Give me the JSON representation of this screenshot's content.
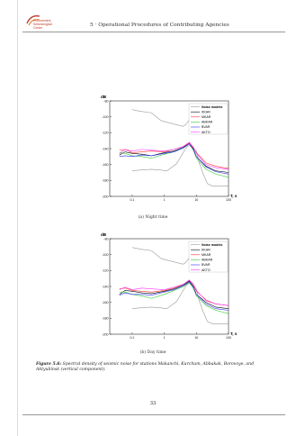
{
  "logo": {
    "line1": "Procurement",
    "line2": "Seismological",
    "line3": "Center"
  },
  "header": {
    "title": "5 · Operational Procedures of Contributing Agencies"
  },
  "chart_data": [
    {
      "type": "line",
      "subtitle": "(a) Night time",
      "ylabel": "dB",
      "xlabel": "T, s",
      "xscale": "log",
      "xlim": [
        0.02,
        100
      ],
      "ylim": [
        -200,
        -80
      ],
      "yticks": [
        -80,
        -100,
        -120,
        -140,
        -160,
        -180,
        -200
      ],
      "xticks": [
        0.1,
        1,
        10,
        100
      ],
      "legend_title": "Noise models",
      "legend_position": "top-right",
      "noise_models": {
        "high": {
          "x": [
            0.1,
            0.17,
            0.4,
            0.8,
            3.8,
            4.6,
            6.3,
            7.9,
            15.4,
            20,
            30,
            100
          ],
          "y": [
            -91,
            -93,
            -95,
            -105,
            -112,
            -110,
            -103,
            -110,
            -120,
            -119,
            -115,
            -110
          ]
        },
        "low": {
          "x": [
            0.1,
            0.17,
            0.4,
            0.8,
            1.2,
            2.4,
            4.3,
            5,
            6,
            10,
            12,
            15.6,
            22,
            32,
            100
          ],
          "y": [
            -168,
            -167,
            -166,
            -167,
            -168,
            -159,
            -142,
            -138,
            -136,
            -143,
            -157,
            -170,
            -184,
            -187,
            -187
          ]
        }
      },
      "series": [
        {
          "name": "KKAR",
          "color": "#000000",
          "x": [
            0.04,
            0.06,
            0.1,
            0.2,
            0.4,
            1,
            2,
            4,
            6,
            8,
            10,
            20,
            40,
            100
          ],
          "y": [
            -148,
            -144,
            -146,
            -147,
            -149,
            -145,
            -143,
            -138,
            -133,
            -140,
            -150,
            -162,
            -168,
            -170
          ]
        },
        {
          "name": "MKAR",
          "color": "#ff3333",
          "x": [
            0.04,
            0.06,
            0.1,
            0.2,
            0.4,
            1,
            2,
            4,
            6,
            8,
            10,
            20,
            40,
            100
          ],
          "y": [
            -142,
            -141,
            -145,
            -144,
            -143,
            -144,
            -141,
            -137,
            -133,
            -139,
            -145,
            -158,
            -162,
            -165
          ]
        },
        {
          "name": "ABKAR",
          "color": "#33cc33",
          "x": [
            0.04,
            0.06,
            0.1,
            0.2,
            0.4,
            1,
            2,
            4,
            6,
            8,
            10,
            20,
            40,
            100
          ],
          "y": [
            -145,
            -146,
            -149,
            -150,
            -152,
            -147,
            -144,
            -139,
            -134,
            -142,
            -152,
            -166,
            -172,
            -176
          ]
        },
        {
          "name": "BVAR",
          "color": "#3333ff",
          "x": [
            0.04,
            0.06,
            0.1,
            0.2,
            0.4,
            1,
            2,
            4,
            6,
            8,
            10,
            20,
            40,
            100
          ],
          "y": [
            -150,
            -149,
            -150,
            -148,
            -149,
            -146,
            -144,
            -139,
            -134,
            -141,
            -150,
            -163,
            -169,
            -172
          ]
        },
        {
          "name": "AKTO",
          "color": "#ff33ff",
          "x": [
            0.04,
            0.06,
            0.1,
            0.2,
            0.4,
            1,
            2,
            4,
            6,
            8,
            10,
            20,
            40,
            100
          ],
          "y": [
            -146,
            -141,
            -143,
            -141,
            -142,
            -143,
            -141,
            -137,
            -132,
            -138,
            -146,
            -160,
            -164,
            -166
          ]
        }
      ]
    },
    {
      "type": "line",
      "subtitle": "(b) Day time",
      "ylabel": "dB",
      "xlabel": "T, s",
      "xscale": "log",
      "xlim": [
        0.02,
        100
      ],
      "ylim": [
        -200,
        -80
      ],
      "yticks": [
        -80,
        -100,
        -120,
        -140,
        -160,
        -180,
        -200
      ],
      "xticks": [
        0.1,
        1,
        10,
        100
      ],
      "legend_title": "Noise models",
      "legend_position": "top-right",
      "noise_models": {
        "high": {
          "x": [
            0.1,
            0.17,
            0.4,
            0.8,
            3.8,
            4.6,
            6.3,
            7.9,
            15.4,
            20,
            30,
            100
          ],
          "y": [
            -91,
            -93,
            -95,
            -105,
            -112,
            -110,
            -103,
            -110,
            -120,
            -119,
            -115,
            -110
          ]
        },
        "low": {
          "x": [
            0.1,
            0.17,
            0.4,
            0.8,
            1.2,
            2.4,
            4.3,
            5,
            6,
            10,
            12,
            15.6,
            22,
            32,
            100
          ],
          "y": [
            -168,
            -167,
            -166,
            -167,
            -168,
            -159,
            -142,
            -138,
            -136,
            -143,
            -157,
            -170,
            -184,
            -187,
            -187
          ]
        }
      },
      "series": [
        {
          "name": "KKAR",
          "color": "#000000",
          "x": [
            0.04,
            0.06,
            0.1,
            0.2,
            0.4,
            1,
            2,
            4,
            6,
            8,
            10,
            20,
            40,
            100
          ],
          "y": [
            -150,
            -145,
            -146,
            -148,
            -149,
            -146,
            -143,
            -138,
            -133,
            -140,
            -150,
            -160,
            -166,
            -168
          ]
        },
        {
          "name": "MKAR",
          "color": "#ff3333",
          "x": [
            0.04,
            0.06,
            0.1,
            0.2,
            0.4,
            1,
            2,
            4,
            6,
            8,
            10,
            20,
            40,
            100
          ],
          "y": [
            -143,
            -142,
            -145,
            -146,
            -147,
            -145,
            -142,
            -137,
            -132,
            -138,
            -146,
            -157,
            -162,
            -164
          ]
        },
        {
          "name": "ABKAR",
          "color": "#33cc33",
          "x": [
            0.04,
            0.06,
            0.1,
            0.2,
            0.4,
            1,
            2,
            4,
            6,
            8,
            10,
            20,
            40,
            100
          ],
          "y": [
            -147,
            -147,
            -150,
            -152,
            -155,
            -150,
            -145,
            -140,
            -135,
            -142,
            -152,
            -164,
            -170,
            -174
          ]
        },
        {
          "name": "BVAR",
          "color": "#3333ff",
          "x": [
            0.04,
            0.06,
            0.1,
            0.2,
            0.4,
            1,
            2,
            4,
            6,
            8,
            10,
            20,
            40,
            100
          ],
          "y": [
            -151,
            -148,
            -150,
            -150,
            -151,
            -147,
            -144,
            -139,
            -134,
            -141,
            -150,
            -162,
            -168,
            -170
          ]
        },
        {
          "name": "AKTO",
          "color": "#ff33ff",
          "x": [
            0.04,
            0.06,
            0.1,
            0.2,
            0.4,
            1,
            2,
            4,
            6,
            8,
            10,
            20,
            40,
            100
          ],
          "y": [
            -144,
            -141,
            -144,
            -142,
            -143,
            -144,
            -141,
            -137,
            -132,
            -137,
            -145,
            -158,
            -162,
            -164
          ]
        }
      ]
    }
  ],
  "figure_caption": {
    "label": "Figure 5.6:",
    "text": "Spectral density of seismic noise for stations Makanchi, Kurchum, Abbakak, Borovoye, and Aktyubinsk (vertical component)."
  },
  "page_number": "33"
}
